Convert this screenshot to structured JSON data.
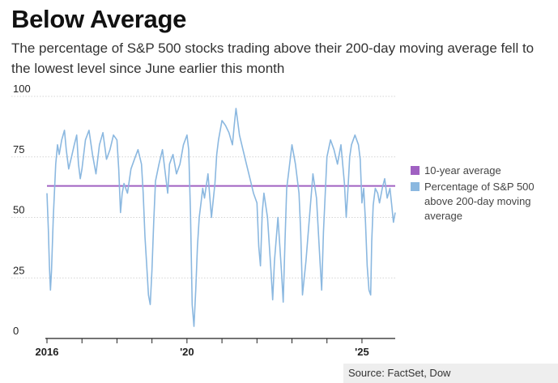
{
  "header": {
    "title": "Below Average",
    "subtitle": "The percentage of S&P 500 stocks trading above their 200-day moving average fell to the lowest level since June earlier this month"
  },
  "source": "Source: FactSet, Dow",
  "colors": {
    "series": "#8bb8e0",
    "average": "#a061c2",
    "grid": "#d4d4d4",
    "axis": "#222222"
  },
  "chart_data": {
    "type": "line",
    "title": "Below Average",
    "xlabel": "",
    "ylabel": "",
    "ylim": [
      0,
      100
    ],
    "yticks": [
      0,
      25,
      50,
      75,
      100
    ],
    "ytick_labels": [
      "0",
      "25",
      "50",
      "75",
      "100"
    ],
    "xlim": [
      2016.0,
      2025.95
    ],
    "xticks": [
      2016,
      2017,
      2018,
      2019,
      2020,
      2021,
      2022,
      2023,
      2024,
      2025
    ],
    "xtick_labels": [
      {
        "year": 2016,
        "label": "2016"
      },
      {
        "year": 2020,
        "label": "'20"
      },
      {
        "year": 2025,
        "label": "'25"
      }
    ],
    "legend": {
      "position": "right",
      "entries": [
        "10-year average",
        "Percentage of S&P 500 above 200-day moving average"
      ]
    },
    "series": [
      {
        "name": "10-year average",
        "kind": "constant",
        "value": 63
      },
      {
        "name": "Percentage of S&P 500 above 200-day moving average",
        "x": [
          2016.0,
          2016.04,
          2016.07,
          2016.1,
          2016.13,
          2016.18,
          2016.25,
          2016.3,
          2016.35,
          2016.42,
          2016.5,
          2016.55,
          2016.62,
          2016.7,
          2016.78,
          2016.85,
          2016.9,
          2016.95,
          2017.0,
          2017.1,
          2017.2,
          2017.3,
          2017.4,
          2017.5,
          2017.6,
          2017.7,
          2017.8,
          2017.9,
          2018.0,
          2018.05,
          2018.1,
          2018.15,
          2018.2,
          2018.3,
          2018.4,
          2018.5,
          2018.6,
          2018.7,
          2018.75,
          2018.8,
          2018.85,
          2018.9,
          2018.95,
          2019.0,
          2019.05,
          2019.1,
          2019.2,
          2019.3,
          2019.4,
          2019.45,
          2019.5,
          2019.6,
          2019.7,
          2019.8,
          2019.9,
          2020.0,
          2020.05,
          2020.1,
          2020.15,
          2020.2,
          2020.25,
          2020.3,
          2020.35,
          2020.4,
          2020.45,
          2020.5,
          2020.6,
          2020.7,
          2020.8,
          2020.85,
          2020.9,
          2021.0,
          2021.1,
          2021.2,
          2021.3,
          2021.35,
          2021.4,
          2021.5,
          2021.6,
          2021.7,
          2021.8,
          2021.9,
          2022.0,
          2022.05,
          2022.1,
          2022.15,
          2022.2,
          2022.3,
          2022.4,
          2022.45,
          2022.5,
          2022.6,
          2022.7,
          2022.75,
          2022.8,
          2022.85,
          2022.9,
          2023.0,
          2023.1,
          2023.2,
          2023.25,
          2023.3,
          2023.4,
          2023.5,
          2023.6,
          2023.7,
          2023.8,
          2023.85,
          2023.9,
          2024.0,
          2024.1,
          2024.2,
          2024.3,
          2024.4,
          2024.5,
          2024.55,
          2024.6,
          2024.65,
          2024.7,
          2024.8,
          2024.9,
          2024.95,
          2025.0,
          2025.05,
          2025.1,
          2025.15,
          2025.2,
          2025.25,
          2025.28,
          2025.32,
          2025.38,
          2025.45,
          2025.5,
          2025.58,
          2025.65,
          2025.72,
          2025.8,
          2025.85,
          2025.9,
          2025.95
        ],
        "values": [
          60,
          45,
          30,
          20,
          28,
          50,
          72,
          80,
          76,
          82,
          86,
          78,
          70,
          75,
          80,
          84,
          72,
          66,
          70,
          82,
          86,
          76,
          68,
          80,
          85,
          74,
          78,
          84,
          82,
          70,
          52,
          60,
          64,
          60,
          70,
          74,
          78,
          72,
          60,
          42,
          30,
          18,
          14,
          28,
          48,
          65,
          72,
          78,
          66,
          60,
          72,
          76,
          68,
          72,
          80,
          84,
          78,
          52,
          14,
          5,
          20,
          38,
          50,
          56,
          62,
          58,
          68,
          50,
          64,
          76,
          82,
          90,
          88,
          85,
          80,
          88,
          95,
          84,
          78,
          72,
          66,
          60,
          56,
          38,
          30,
          52,
          60,
          50,
          28,
          16,
          32,
          50,
          28,
          15,
          40,
          62,
          68,
          80,
          72,
          60,
          44,
          18,
          32,
          50,
          68,
          58,
          32,
          20,
          44,
          75,
          82,
          78,
          72,
          80,
          64,
          50,
          62,
          75,
          80,
          84,
          80,
          74,
          56,
          62,
          48,
          30,
          20,
          18,
          40,
          55,
          62,
          60,
          56,
          62,
          66,
          58,
          62,
          55,
          48,
          52
        ]
      }
    ]
  }
}
